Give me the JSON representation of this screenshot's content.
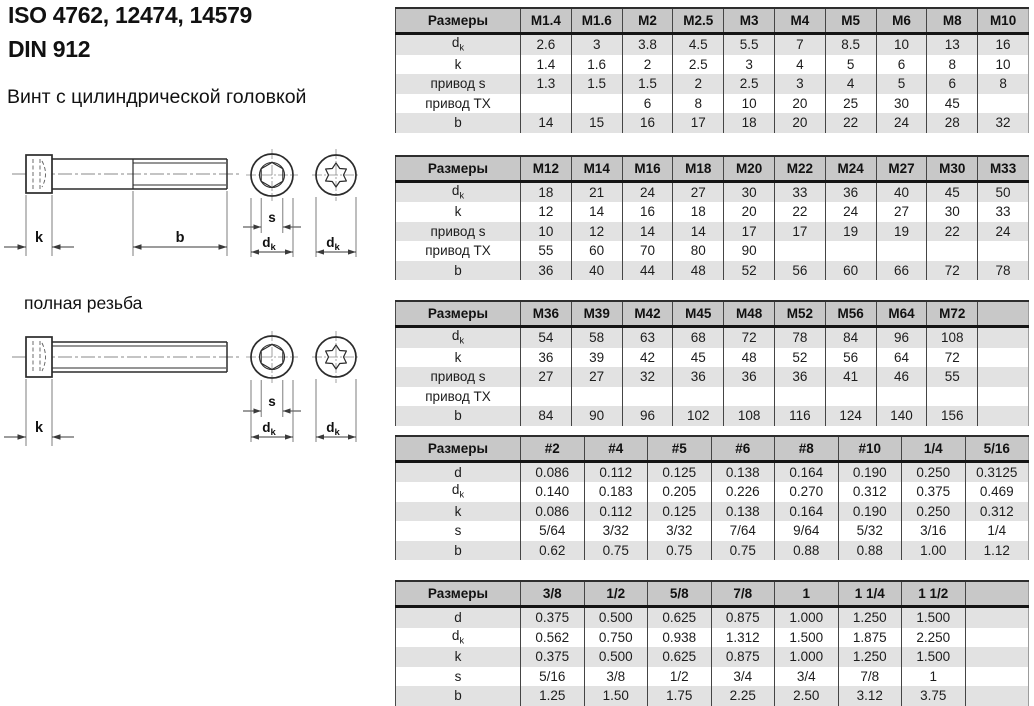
{
  "page_title": {
    "line1": "ISO 4762, 12474, 14579",
    "line2": "DIN 912"
  },
  "subtitle": "Винт с цилиндрической головкой",
  "section_label": "полная резьба",
  "drawing_labels": {
    "k": "k",
    "b": "b",
    "s": "s",
    "d": "d",
    "d_sub": "k"
  },
  "colors": {
    "header_bg": "#c8c8c8",
    "row_shade": "#e2e2e2",
    "border_dark": "#141414",
    "line_art": "#2b2b2b",
    "dim_line": "#6e6e6e"
  },
  "tables": [
    {
      "header": [
        "Размеры",
        "M1.4",
        "M1.6",
        "M2",
        "M2.5",
        "M3",
        "M4",
        "M5",
        "M6",
        "M8",
        "M10"
      ],
      "rows": [
        {
          "label": "d_k",
          "values": [
            "2.6",
            "3",
            "3.8",
            "4.5",
            "5.5",
            "7",
            "8.5",
            "10",
            "13",
            "16"
          ]
        },
        {
          "label": "k",
          "values": [
            "1.4",
            "1.6",
            "2",
            "2.5",
            "3",
            "4",
            "5",
            "6",
            "8",
            "10"
          ]
        },
        {
          "label": "привод s",
          "values": [
            "1.3",
            "1.5",
            "1.5",
            "2",
            "2.5",
            "3",
            "4",
            "5",
            "6",
            "8"
          ]
        },
        {
          "label": "привод TX",
          "values": [
            "",
            "",
            "6",
            "8",
            "10",
            "20",
            "25",
            "30",
            "45",
            ""
          ]
        },
        {
          "label": "b",
          "values": [
            "14",
            "15",
            "16",
            "17",
            "18",
            "20",
            "22",
            "24",
            "28",
            "32"
          ]
        }
      ]
    },
    {
      "header": [
        "Размеры",
        "M12",
        "M14",
        "M16",
        "M18",
        "M20",
        "M22",
        "M24",
        "M27",
        "M30",
        "M33"
      ],
      "rows": [
        {
          "label": "d_k",
          "values": [
            "18",
            "21",
            "24",
            "27",
            "30",
            "33",
            "36",
            "40",
            "45",
            "50"
          ]
        },
        {
          "label": "k",
          "values": [
            "12",
            "14",
            "16",
            "18",
            "20",
            "22",
            "24",
            "27",
            "30",
            "33"
          ]
        },
        {
          "label": "привод s",
          "values": [
            "10",
            "12",
            "14",
            "14",
            "17",
            "17",
            "19",
            "19",
            "22",
            "24"
          ]
        },
        {
          "label": "привод TX",
          "values": [
            "55",
            "60",
            "70",
            "80",
            "90",
            "",
            "",
            "",
            "",
            ""
          ]
        },
        {
          "label": "b",
          "values": [
            "36",
            "40",
            "44",
            "48",
            "52",
            "56",
            "60",
            "66",
            "72",
            "78"
          ]
        }
      ]
    },
    {
      "header": [
        "Размеры",
        "M36",
        "M39",
        "M42",
        "M45",
        "M48",
        "M52",
        "M56",
        "M64",
        "M72",
        ""
      ],
      "rows": [
        {
          "label": "d_k",
          "values": [
            "54",
            "58",
            "63",
            "68",
            "72",
            "78",
            "84",
            "96",
            "108",
            ""
          ]
        },
        {
          "label": "k",
          "values": [
            "36",
            "39",
            "42",
            "45",
            "48",
            "52",
            "56",
            "64",
            "72",
            ""
          ]
        },
        {
          "label": "привод s",
          "values": [
            "27",
            "27",
            "32",
            "36",
            "36",
            "36",
            "41",
            "46",
            "55",
            ""
          ]
        },
        {
          "label": "привод TX",
          "values": [
            "",
            "",
            "",
            "",
            "",
            "",
            "",
            "",
            "",
            ""
          ]
        },
        {
          "label": "b",
          "values": [
            "84",
            "90",
            "96",
            "102",
            "108",
            "116",
            "124",
            "140",
            "156",
            ""
          ]
        }
      ]
    },
    {
      "header": [
        "Размеры",
        "#2",
        "#4",
        "#5",
        "#6",
        "#8",
        "#10",
        "1/4",
        "5/16"
      ],
      "rows": [
        {
          "label": "d",
          "values": [
            "0.086",
            "0.112",
            "0.125",
            "0.138",
            "0.164",
            "0.190",
            "0.250",
            "0.3125"
          ]
        },
        {
          "label": "d_k",
          "values": [
            "0.140",
            "0.183",
            "0.205",
            "0.226",
            "0.270",
            "0.312",
            "0.375",
            "0.469"
          ]
        },
        {
          "label": "k",
          "values": [
            "0.086",
            "0.112",
            "0.125",
            "0.138",
            "0.164",
            "0.190",
            "0.250",
            "0.312"
          ]
        },
        {
          "label": "s",
          "values": [
            "5/64",
            "3/32",
            "3/32",
            "7/64",
            "9/64",
            "5/32",
            "3/16",
            "1/4"
          ]
        },
        {
          "label": "b",
          "values": [
            "0.62",
            "0.75",
            "0.75",
            "0.75",
            "0.88",
            "0.88",
            "1.00",
            "1.12"
          ]
        }
      ]
    },
    {
      "header": [
        "Размеры",
        "3/8",
        "1/2",
        "5/8",
        "7/8",
        "1",
        "1 1/4",
        "1 1/2",
        ""
      ],
      "rows": [
        {
          "label": "d",
          "values": [
            "0.375",
            "0.500",
            "0.625",
            "0.875",
            "1.000",
            "1.250",
            "1.500",
            ""
          ]
        },
        {
          "label": "d_k",
          "values": [
            "0.562",
            "0.750",
            "0.938",
            "1.312",
            "1.500",
            "1.875",
            "2.250",
            ""
          ]
        },
        {
          "label": "k",
          "values": [
            "0.375",
            "0.500",
            "0.625",
            "0.875",
            "1.000",
            "1.250",
            "1.500",
            ""
          ]
        },
        {
          "label": "s",
          "values": [
            "5/16",
            "3/8",
            "1/2",
            "3/4",
            "3/4",
            "7/8",
            "1",
            ""
          ]
        },
        {
          "label": "b",
          "values": [
            "1.25",
            "1.50",
            "1.75",
            "2.25",
            "2.50",
            "3.12",
            "3.75",
            ""
          ]
        }
      ]
    }
  ]
}
